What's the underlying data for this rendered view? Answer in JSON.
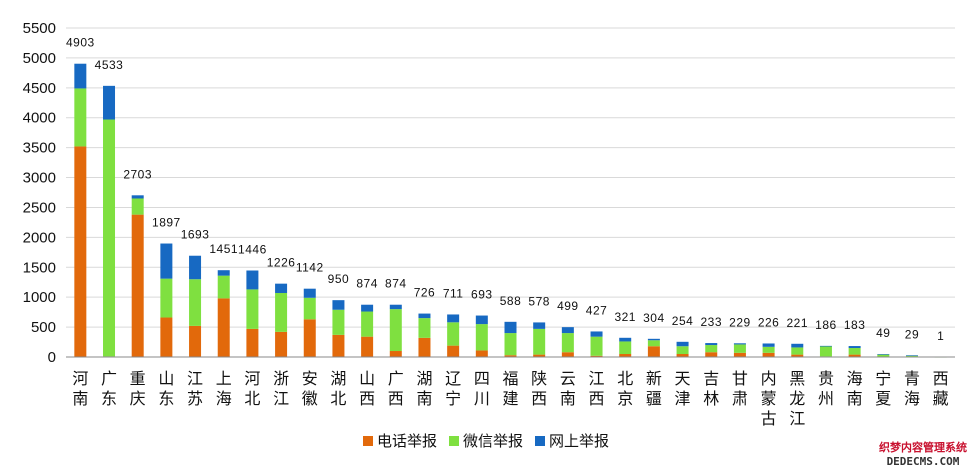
{
  "chart_data": {
    "type": "bar",
    "stacked": true,
    "categories": [
      "河南",
      "广东",
      "重庆",
      "山东",
      "江苏",
      "上海",
      "河北",
      "浙江",
      "安徽",
      "湖北",
      "山西",
      "广西",
      "湖南",
      "辽宁",
      "四川",
      "福建",
      "陕西",
      "云南",
      "江西",
      "北京",
      "新疆",
      "天津",
      "吉林",
      "甘肃",
      "内蒙古",
      "黑龙江",
      "贵州",
      "海南",
      "宁夏",
      "青海",
      "西藏"
    ],
    "series": [
      {
        "name": "电话举报",
        "color": "#e2690b",
        "values": [
          3520,
          10,
          2380,
          660,
          520,
          980,
          470,
          420,
          630,
          370,
          340,
          100,
          320,
          190,
          110,
          30,
          40,
          80,
          20,
          50,
          180,
          50,
          80,
          70,
          70,
          40,
          10,
          40,
          5,
          3,
          0
        ]
      },
      {
        "name": "微信举报",
        "color": "#7fe040",
        "values": [
          970,
          3960,
          270,
          650,
          780,
          380,
          660,
          650,
          360,
          420,
          420,
          700,
          330,
          390,
          440,
          370,
          430,
          320,
          320,
          210,
          100,
          130,
          120,
          140,
          100,
          120,
          170,
          110,
          35,
          20,
          1
        ]
      },
      {
        "name": "网上举报",
        "color": "#1769c2",
        "values": [
          413,
          563,
          53,
          587,
          393,
          91,
          316,
          156,
          152,
          160,
          114,
          74,
          76,
          131,
          143,
          188,
          108,
          99,
          87,
          61,
          24,
          74,
          33,
          19,
          56,
          61,
          6,
          33,
          9,
          6,
          0
        ]
      }
    ],
    "totals": [
      4903,
      4533,
      2703,
      1897,
      1693,
      1451,
      1446,
      1226,
      1142,
      950,
      874,
      874,
      726,
      711,
      693,
      588,
      578,
      499,
      427,
      321,
      304,
      254,
      233,
      229,
      226,
      221,
      186,
      183,
      49,
      29,
      1
    ],
    "ylim": [
      0,
      5500
    ],
    "yticks": [
      0,
      500,
      1000,
      1500,
      2000,
      2500,
      3000,
      3500,
      4000,
      4500,
      5000,
      5500
    ],
    "grid": true,
    "legend": "bottom"
  },
  "watermark": {
    "line1": "织梦内容管理系统",
    "line2": "DEDECMS.COM"
  }
}
